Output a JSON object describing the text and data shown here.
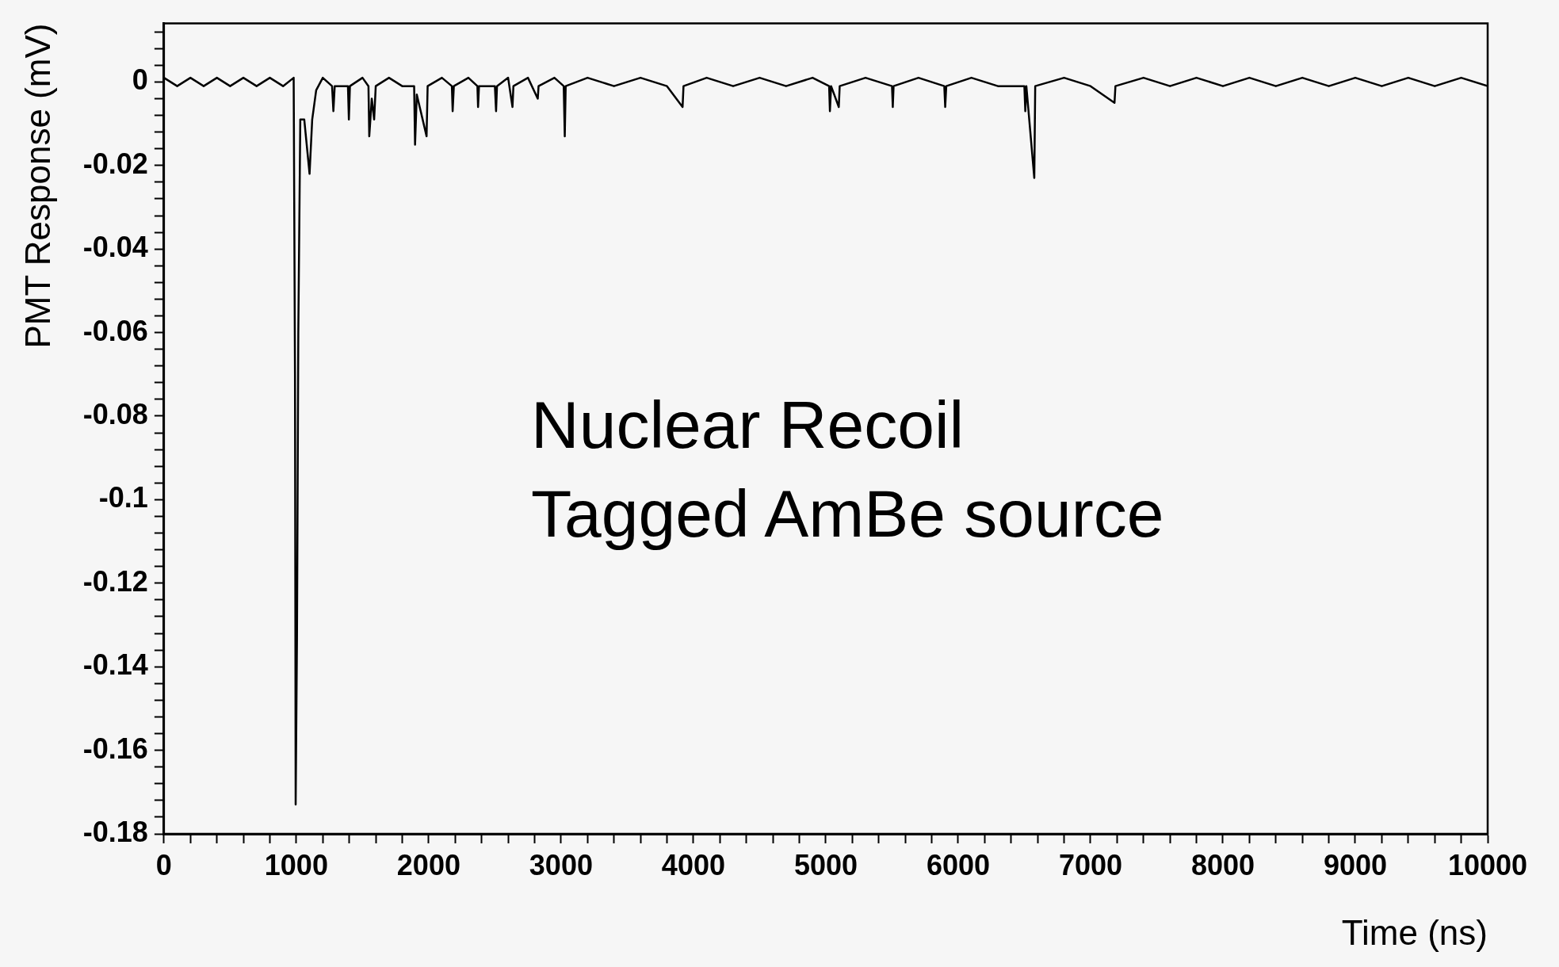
{
  "chart_data": {
    "type": "line",
    "xlabel": "Time (ns)",
    "ylabel": "PMT Response (mV)",
    "annotations": [
      "Nuclear Recoil",
      "Tagged AmBe source"
    ],
    "x": [
      0,
      100,
      200,
      300,
      400,
      500,
      600,
      700,
      800,
      900,
      980,
      990,
      995,
      1005,
      1015,
      1030,
      1060,
      1100,
      1120,
      1150,
      1200,
      1270,
      1280,
      1290,
      1390,
      1397,
      1405,
      1500,
      1545,
      1551,
      1570,
      1588,
      1600,
      1700,
      1800,
      1890,
      1897,
      1910,
      1984,
      1992,
      2100,
      2175,
      2181,
      2190,
      2300,
      2368,
      2373,
      2380,
      2500,
      2509,
      2516,
      2600,
      2633,
      2640,
      2750,
      2824,
      2830,
      2950,
      3020,
      3028,
      3035,
      3200,
      3400,
      3600,
      3800,
      3918,
      3925,
      4100,
      4300,
      4500,
      4700,
      4900,
      5025,
      5031,
      5040,
      5098,
      5105,
      5300,
      5500,
      5506,
      5512,
      5700,
      5895,
      5902,
      5910,
      6100,
      6300,
      6500,
      6507,
      6515,
      6575,
      6582,
      6800,
      7000,
      7181,
      7188,
      7400,
      7600,
      7800,
      8000,
      8200,
      8400,
      8600,
      8800,
      9000,
      9200,
      9400,
      9600,
      9800,
      10000
    ],
    "series": [
      {
        "color": "#000000",
        "values": [
          0.001,
          -0.001,
          0.001,
          -0.001,
          0.001,
          -0.001,
          0.001,
          -0.001,
          0.001,
          -0.001,
          0.001,
          -0.07,
          -0.173,
          -0.133,
          -0.06,
          -0.009,
          -0.009,
          -0.022,
          -0.009,
          -0.002,
          0.001,
          -0.001,
          -0.007,
          -0.001,
          -0.001,
          -0.009,
          -0.001,
          0.001,
          -0.001,
          -0.013,
          -0.004,
          -0.009,
          -0.001,
          0.001,
          -0.001,
          -0.001,
          -0.015,
          -0.003,
          -0.013,
          -0.001,
          0.001,
          -0.001,
          -0.007,
          -0.001,
          0.001,
          -0.001,
          -0.006,
          -0.001,
          -0.001,
          -0.007,
          -0.001,
          0.001,
          -0.006,
          -0.001,
          0.001,
          -0.004,
          -0.001,
          0.001,
          -0.001,
          -0.013,
          -0.001,
          0.001,
          -0.001,
          0.001,
          -0.001,
          -0.006,
          -0.001,
          0.001,
          -0.001,
          0.001,
          -0.001,
          0.001,
          -0.001,
          -0.007,
          -0.001,
          -0.006,
          -0.001,
          0.001,
          -0.001,
          -0.006,
          -0.001,
          0.001,
          -0.001,
          -0.006,
          -0.001,
          0.001,
          -0.001,
          -0.001,
          -0.007,
          -0.001,
          -0.023,
          -0.001,
          0.001,
          -0.001,
          -0.005,
          -0.001,
          0.001,
          -0.001,
          0.001,
          -0.001,
          0.001,
          -0.001,
          0.001,
          -0.001,
          0.001,
          -0.001,
          0.001,
          -0.001,
          0.001,
          -0.001
        ]
      }
    ],
    "xlim": [
      0,
      10000
    ],
    "xticks": [
      0,
      {
        "value": 200,
        "label": null
      },
      {
        "value": 400,
        "label": null
      },
      {
        "value": 600,
        "label": null
      },
      {
        "value": 800,
        "label": null
      },
      1000,
      {
        "value": 1200,
        "label": null
      },
      {
        "value": 1400,
        "label": null
      },
      {
        "value": 1600,
        "label": null
      },
      {
        "value": 1800,
        "label": null
      },
      2000,
      {
        "value": 2200,
        "label": null
      },
      {
        "value": 2400,
        "label": null
      },
      {
        "value": 2600,
        "label": null
      },
      {
        "value": 2800,
        "label": null
      },
      3000,
      {
        "value": 3200,
        "label": null
      },
      {
        "value": 3400,
        "label": null
      },
      {
        "value": 3600,
        "label": null
      },
      {
        "value": 3800,
        "label": null
      },
      4000,
      {
        "value": 4200,
        "label": null
      },
      {
        "value": 4400,
        "label": null
      },
      {
        "value": 4600,
        "label": null
      },
      {
        "value": 4800,
        "label": null
      },
      5000,
      {
        "value": 5200,
        "label": null
      },
      {
        "value": 5400,
        "label": null
      },
      {
        "value": 5600,
        "label": null
      },
      {
        "value": 5800,
        "label": null
      },
      6000,
      {
        "value": 6200,
        "label": null
      },
      {
        "value": 6400,
        "label": null
      },
      {
        "value": 6600,
        "label": null
      },
      {
        "value": 6800,
        "label": null
      },
      7000,
      {
        "value": 7200,
        "label": null
      },
      {
        "value": 7400,
        "label": null
      },
      {
        "value": 7600,
        "label": null
      },
      {
        "value": 7800,
        "label": null
      },
      8000,
      {
        "value": 8200,
        "label": null
      },
      {
        "value": 8400,
        "label": null
      },
      {
        "value": 8600,
        "label": null
      },
      {
        "value": 8800,
        "label": null
      },
      9000,
      {
        "value": 9200,
        "label": null
      },
      {
        "value": 9400,
        "label": null
      },
      {
        "value": 9600,
        "label": null
      },
      {
        "value": 9800,
        "label": null
      },
      10000
    ],
    "ylim": [
      -0.18,
      0.014
    ],
    "yticks": [
      -0.18,
      {
        "value": -0.176,
        "label": null
      },
      {
        "value": -0.172,
        "label": null
      },
      {
        "value": -0.168,
        "label": null
      },
      {
        "value": -0.164,
        "label": null
      },
      -0.16,
      {
        "value": -0.156,
        "label": null
      },
      {
        "value": -0.152,
        "label": null
      },
      {
        "value": -0.148,
        "label": null
      },
      {
        "value": -0.144,
        "label": null
      },
      -0.14,
      {
        "value": -0.136,
        "label": null
      },
      {
        "value": -0.132,
        "label": null
      },
      {
        "value": -0.128,
        "label": null
      },
      {
        "value": -0.124,
        "label": null
      },
      -0.12,
      {
        "value": -0.116,
        "label": null
      },
      {
        "value": -0.112,
        "label": null
      },
      {
        "value": -0.108,
        "label": null
      },
      {
        "value": -0.104,
        "label": null
      },
      -0.1,
      {
        "value": -0.096,
        "label": null
      },
      {
        "value": -0.092,
        "label": null
      },
      {
        "value": -0.088,
        "label": null
      },
      {
        "value": -0.084,
        "label": null
      },
      -0.08,
      {
        "value": -0.076,
        "label": null
      },
      {
        "value": -0.072,
        "label": null
      },
      {
        "value": -0.068,
        "label": null
      },
      {
        "value": -0.064,
        "label": null
      },
      -0.06,
      {
        "value": -0.056,
        "label": null
      },
      {
        "value": -0.052,
        "label": null
      },
      {
        "value": -0.048,
        "label": null
      },
      {
        "value": -0.044,
        "label": null
      },
      -0.04,
      {
        "value": -0.036,
        "label": null
      },
      {
        "value": -0.032,
        "label": null
      },
      {
        "value": -0.028,
        "label": null
      },
      {
        "value": -0.024,
        "label": null
      },
      -0.02,
      {
        "value": -0.016,
        "label": null
      },
      {
        "value": -0.012,
        "label": null
      },
      {
        "value": -0.008,
        "label": null
      },
      {
        "value": -0.004,
        "label": null
      },
      0,
      {
        "value": 0.004,
        "label": null
      },
      {
        "value": 0.008,
        "label": null
      },
      {
        "value": 0.012,
        "label": null
      }
    ],
    "grid": false,
    "legend": false,
    "marker": "none",
    "line_style": "solid"
  }
}
